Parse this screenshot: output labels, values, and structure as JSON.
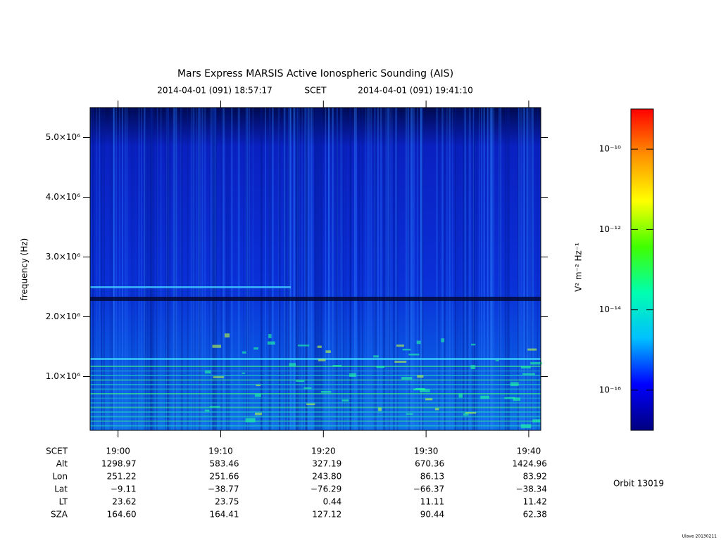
{
  "chart_data": {
    "type": "spectrogram",
    "title": "Mars Express MARSIS Active Ionospheric Sounding (AIS)",
    "subtitle_start": "2014-04-01 (091) 18:57:17",
    "subtitle_frame": "SCET",
    "subtitle_end": "2014-04-01 (091) 19:41:10",
    "y_label": "frequency (Hz)",
    "xlim": [
      1137.28,
      1181.17
    ],
    "xticks": [
      {
        "value": 1140,
        "label": "19:00"
      },
      {
        "value": 1150,
        "label": "19:10"
      },
      {
        "value": 1160,
        "label": "19:20"
      },
      {
        "value": 1170,
        "label": "19:30"
      },
      {
        "value": 1180,
        "label": "19:40"
      }
    ],
    "ylim": [
      100000,
      5500000
    ],
    "yticks": [
      {
        "value": 1000000,
        "label": "1.0×10⁶"
      },
      {
        "value": 2000000,
        "label": "2.0×10⁶"
      },
      {
        "value": 3000000,
        "label": "3.0×10⁶"
      },
      {
        "value": 4000000,
        "label": "4.0×10⁶"
      },
      {
        "value": 5000000,
        "label": "5.0×10⁶"
      }
    ],
    "colorbar": {
      "label": "V² m⁻² Hz⁻¹",
      "log": true,
      "lim": [
        1e-17,
        1e-09
      ],
      "ticks": [
        {
          "value": 1e-16,
          "label": "10⁻¹⁶"
        },
        {
          "value": 1e-14,
          "label": "10⁻¹⁴"
        },
        {
          "value": 1e-12,
          "label": "10⁻¹²"
        },
        {
          "value": 1e-10,
          "label": "10⁻¹⁰"
        }
      ],
      "colors": [
        "#00007f",
        "#0000ff",
        "#00c0ff",
        "#00ffb0",
        "#40ff00",
        "#ffff00",
        "#ff9000",
        "#ff0000"
      ]
    },
    "ephemeris": {
      "time_label": "SCET",
      "rows": [
        {
          "name": "Alt",
          "values": [
            "1298.97",
            "583.46",
            "327.19",
            "670.36",
            "1424.96"
          ]
        },
        {
          "name": "Lon",
          "values": [
            "251.22",
            "251.66",
            "243.80",
            "86.13",
            "83.92"
          ]
        },
        {
          "name": "Lat",
          "values": [
            "−9.11",
            "−38.77",
            "−76.29",
            "−66.37",
            "−38.34"
          ]
        },
        {
          "name": "LT",
          "values": [
            "23.62",
            "23.75",
            "0.44",
            "11.11",
            "11.42"
          ]
        },
        {
          "name": "SZA",
          "values": [
            "164.60",
            "164.41",
            "127.12",
            "90.44",
            "62.38"
          ]
        }
      ]
    },
    "orbit": "Orbit 13019",
    "footer": "Ulave 20130211"
  }
}
